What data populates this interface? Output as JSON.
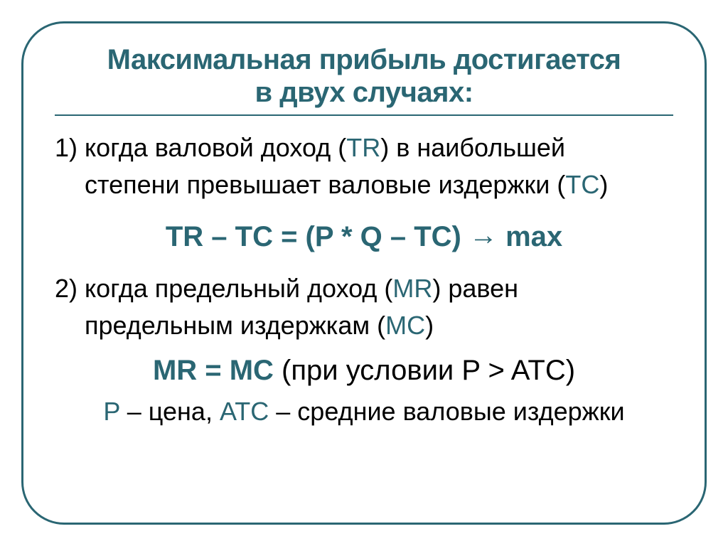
{
  "title": {
    "line1": "Максимальная прибыль достигается",
    "line2": "в двух случаях:"
  },
  "case1": {
    "num": "1) ",
    "text1a": "когда валовой доход (",
    "tr": "TR",
    "text1b": ") в наибольшей",
    "text2a": "степени превышает валовые издержки (",
    "tc": "TC",
    "text2b": ")"
  },
  "formula1": {
    "left": "TR – TC = (P * Q – TC) ",
    "arrow": "→",
    "right": " max"
  },
  "case2": {
    "num": "2) ",
    "text1a": "когда предельный доход (",
    "mr": "MR",
    "text1b": ") равен",
    "text2a": "предельным издержкам (",
    "mc": "MC",
    "text2b": ")"
  },
  "formula2": {
    "eq": "MR = MC",
    "cond": "  (при условии P > ATC)"
  },
  "legend": {
    "p": "P",
    "t1": " – цена, ",
    "atc": "ATC",
    "t2": " – средние валовые издержки"
  },
  "colors": {
    "accent": "#2a6673",
    "text": "#000000",
    "bg": "#ffffff"
  }
}
